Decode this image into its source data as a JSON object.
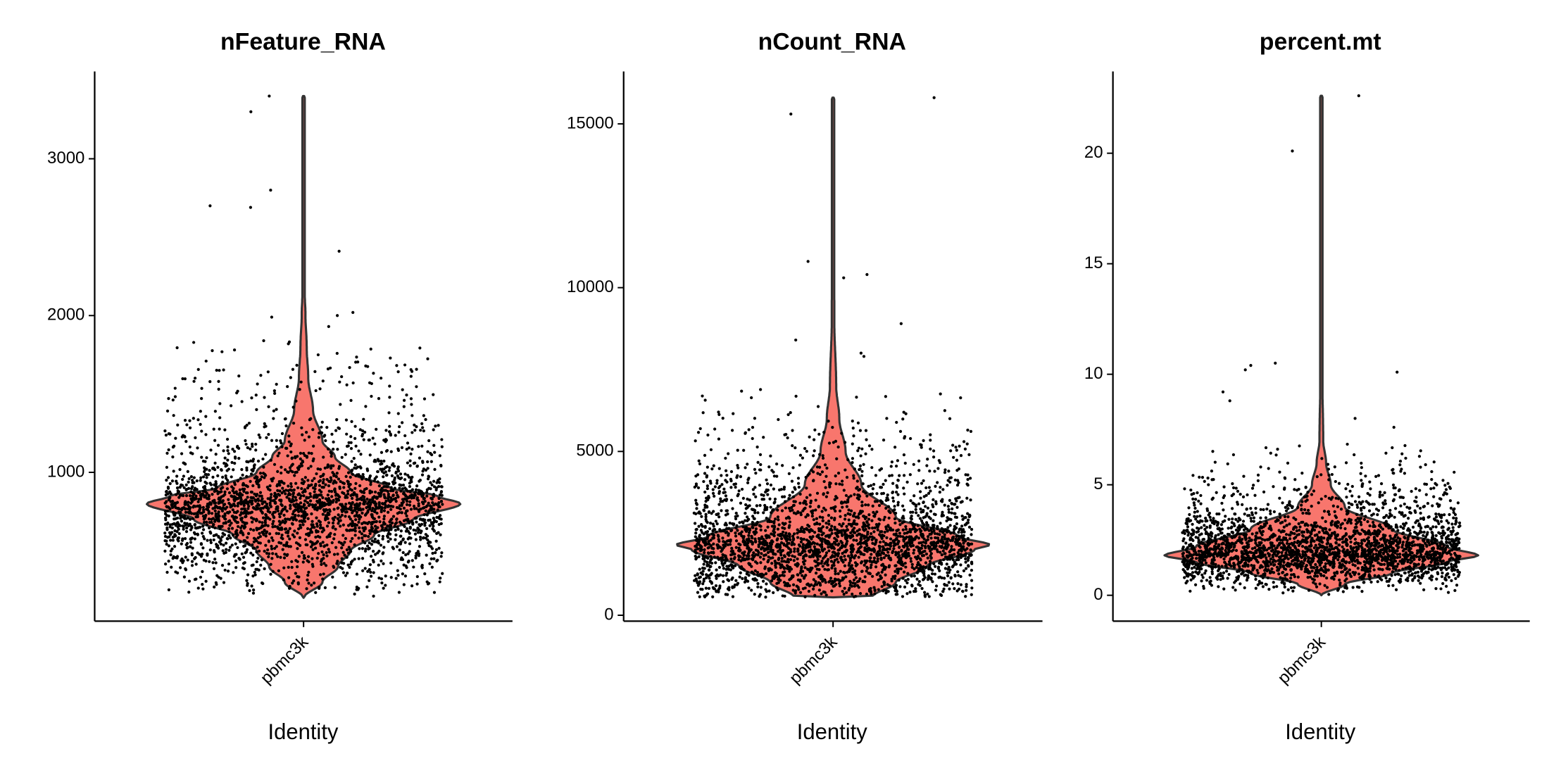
{
  "chart_data": [
    {
      "type": "violin",
      "title": "nFeature_RNA",
      "xlabel": "Identity",
      "ylabel": "",
      "categories": [
        "pbmc3k"
      ],
      "ylim": [
        51,
        3557
      ],
      "yticks": [
        1000,
        2000,
        3000
      ],
      "ytick_labels": [
        "1000",
        "2000",
        "3000"
      ],
      "grid": false,
      "legend": "none",
      "fill_color": "#F8766D",
      "n_points": 2700,
      "density_profile": [
        [
          200,
          0
        ],
        [
          300,
          0.12
        ],
        [
          400,
          0.22
        ],
        [
          500,
          0.3
        ],
        [
          600,
          0.45
        ],
        [
          700,
          0.7
        ],
        [
          800,
          1.0
        ],
        [
          850,
          0.85
        ],
        [
          900,
          0.55
        ],
        [
          1000,
          0.3
        ],
        [
          1100,
          0.2
        ],
        [
          1200,
          0.12
        ],
        [
          1400,
          0.06
        ],
        [
          1600,
          0.03
        ],
        [
          1800,
          0.02
        ],
        [
          2000,
          0.012
        ],
        [
          2200,
          0.005
        ],
        [
          3400,
          0.004
        ]
      ],
      "outliers": [
        3400,
        3300,
        2800,
        2700,
        2690,
        2410,
        2020,
        2000,
        1990,
        1930
      ]
    },
    {
      "type": "violin",
      "title": "nCount_RNA",
      "xlabel": "Identity",
      "ylabel": "",
      "categories": [
        "pbmc3k"
      ],
      "ylim": [
        -180,
        16600
      ],
      "yticks": [
        0,
        5000,
        10000,
        15000
      ],
      "ytick_labels": [
        "0",
        "5000",
        "10000",
        "15000"
      ],
      "grid": false,
      "legend": "none",
      "fill_color": "#F8766D",
      "n_points": 2700,
      "density_profile": [
        [
          548,
          0
        ],
        [
          560,
          0.25
        ],
        [
          1000,
          0.4
        ],
        [
          1500,
          0.6
        ],
        [
          2000,
          0.9
        ],
        [
          2150,
          1.0
        ],
        [
          2400,
          0.8
        ],
        [
          3000,
          0.4
        ],
        [
          4000,
          0.18
        ],
        [
          5000,
          0.08
        ],
        [
          6000,
          0.04
        ],
        [
          7000,
          0.02
        ],
        [
          9000,
          0.008
        ],
        [
          15800,
          0.004
        ]
      ],
      "outliers": [
        15800,
        15300,
        10800,
        10400,
        10300,
        8900,
        8400,
        8000,
        7900
      ]
    },
    {
      "type": "violin",
      "title": "percent.mt",
      "xlabel": "Identity",
      "ylabel": "",
      "categories": [
        "pbmc3k"
      ],
      "ylim": [
        -1.17,
        23.7
      ],
      "yticks": [
        0,
        5,
        10,
        15,
        20
      ],
      "ytick_labels": [
        "0",
        "5",
        "10",
        "15",
        "20"
      ],
      "grid": false,
      "legend": "none",
      "fill_color": "#F8766D",
      "n_points": 2700,
      "density_profile": [
        [
          0,
          0
        ],
        [
          0.5,
          0.15
        ],
        [
          1,
          0.45
        ],
        [
          1.5,
          0.8
        ],
        [
          1.8,
          1.0
        ],
        [
          2.2,
          0.8
        ],
        [
          3,
          0.45
        ],
        [
          4,
          0.15
        ],
        [
          5,
          0.06
        ],
        [
          6,
          0.03
        ],
        [
          7,
          0.012
        ],
        [
          10,
          0.006
        ],
        [
          22.6,
          0.004
        ]
      ],
      "outliers": [
        22.6,
        20.1,
        10.5,
        10.4,
        10.2,
        10.1,
        9.2,
        8.8,
        8.0,
        7.6
      ]
    }
  ]
}
